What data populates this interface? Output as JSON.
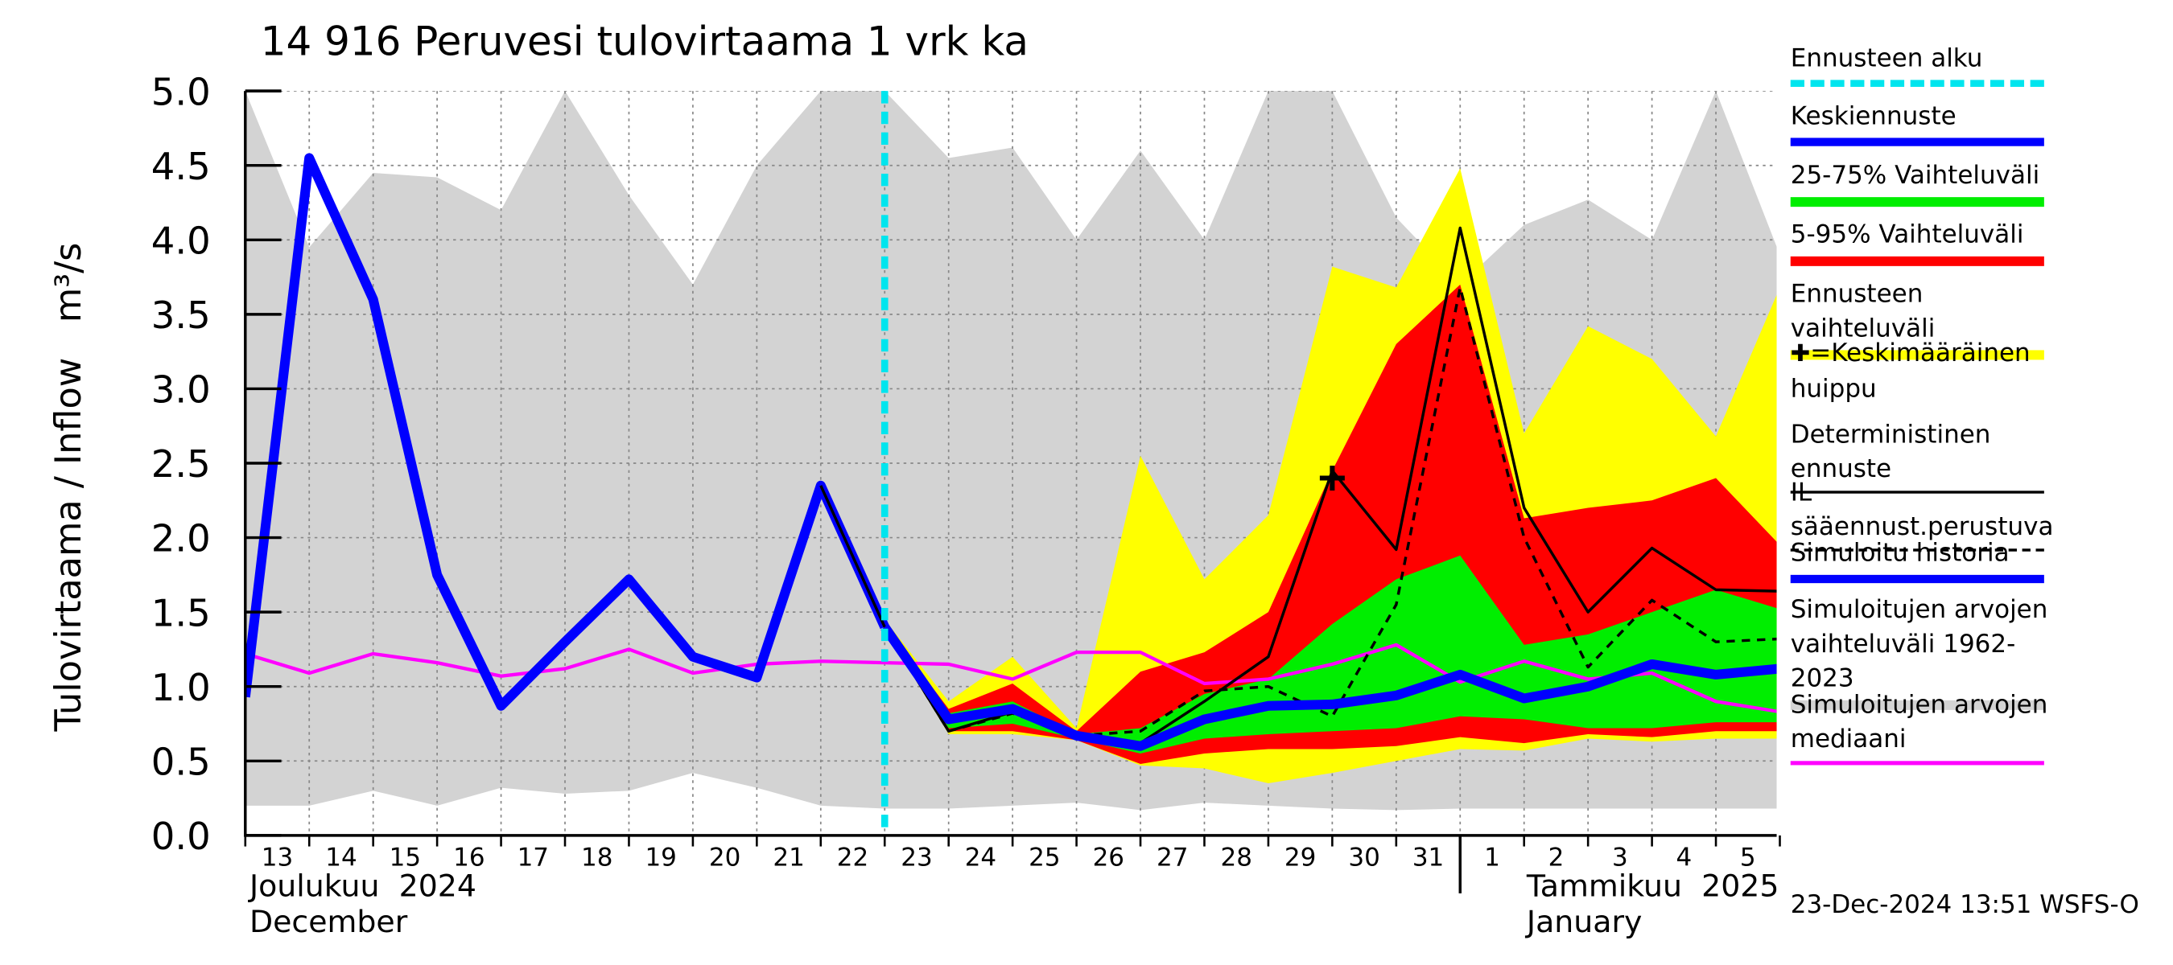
{
  "chart_data": {
    "type": "line",
    "title": "14 916 Peruvesi tulovirtaama 1 vrk ka",
    "y_label": "Tulovirtaama / Inflow",
    "y_unit": "m³/s",
    "categories": [
      "13",
      "14",
      "15",
      "16",
      "17",
      "18",
      "19",
      "20",
      "21",
      "22",
      "23",
      "24",
      "25",
      "26",
      "27",
      "28",
      "29",
      "30",
      "31",
      "1",
      "2",
      "3",
      "4",
      "5",
      null
    ],
    "months": [
      {
        "label": "Joulukuu  2024",
        "english": "December",
        "start": "13"
      },
      {
        "label": "Tammikuu  2025",
        "english": "January",
        "start": "1"
      }
    ],
    "forecast_start": {
      "label": "Ennusteen alku",
      "category": "23",
      "color": "#00e5ee"
    },
    "ylim": [
      0,
      5
    ],
    "yticks": [
      {
        "value": 0,
        "label": "0.0"
      },
      0.5,
      {
        "value": 1,
        "label": "1.0"
      },
      1.5,
      {
        "value": 2,
        "label": "2.0"
      },
      2.5,
      {
        "value": 3,
        "label": "3.0"
      },
      3.5,
      {
        "value": 4,
        "label": "4.0"
      },
      4.5,
      {
        "value": 5,
        "label": "5.0"
      }
    ],
    "grid": true,
    "series": [
      {
        "name": "Keskiennuste",
        "kind": "line",
        "style": "thick",
        "color": "#0000ff",
        "values": [
          null,
          null,
          null,
          null,
          null,
          null,
          null,
          null,
          null,
          null,
          1.4,
          0.78,
          0.85,
          0.67,
          0.6,
          0.78,
          0.87,
          0.88,
          0.94,
          1.08,
          0.92,
          1.0,
          1.15,
          1.08,
          1.12
        ]
      },
      {
        "name": "25-75% Vaihteluväli",
        "kind": "band",
        "color": "#00ee00",
        "upper": [
          null,
          null,
          null,
          null,
          null,
          null,
          null,
          null,
          null,
          null,
          1.41,
          0.82,
          0.9,
          0.68,
          0.72,
          0.95,
          1.05,
          1.42,
          1.72,
          1.88,
          1.28,
          1.35,
          1.5,
          1.65,
          1.52
        ],
        "lower": [
          null,
          null,
          null,
          null,
          null,
          null,
          null,
          null,
          null,
          null,
          1.4,
          0.72,
          0.75,
          0.65,
          0.55,
          0.65,
          0.68,
          0.7,
          0.72,
          0.8,
          0.78,
          0.72,
          0.72,
          0.76,
          0.76
        ]
      },
      {
        "name": "5-95% Vaihteluväli",
        "kind": "band",
        "color": "#ff0000",
        "upper": [
          null,
          null,
          null,
          null,
          null,
          null,
          null,
          null,
          null,
          null,
          1.42,
          0.85,
          1.02,
          0.7,
          1.1,
          1.23,
          1.5,
          2.45,
          3.3,
          3.7,
          2.13,
          2.2,
          2.25,
          2.4,
          1.95
        ],
        "lower": [
          null,
          null,
          null,
          null,
          null,
          null,
          null,
          null,
          null,
          null,
          1.4,
          0.7,
          0.7,
          0.64,
          0.48,
          0.55,
          0.58,
          0.58,
          0.6,
          0.66,
          0.62,
          0.68,
          0.66,
          0.7,
          0.7
        ]
      },
      {
        "name": "Ennusteen vaihteluväli",
        "kind": "band",
        "color": "#ffff00",
        "upper": [
          null,
          null,
          null,
          null,
          null,
          null,
          null,
          null,
          null,
          null,
          1.45,
          0.9,
          1.2,
          0.72,
          2.55,
          1.72,
          2.15,
          3.82,
          3.68,
          4.48,
          2.7,
          3.42,
          3.2,
          2.68,
          3.68
        ],
        "lower": [
          null,
          null,
          null,
          null,
          null,
          null,
          null,
          null,
          null,
          null,
          1.4,
          0.68,
          0.68,
          0.64,
          0.47,
          0.45,
          0.35,
          0.42,
          0.5,
          0.58,
          0.57,
          0.65,
          0.63,
          0.65,
          0.65
        ]
      },
      {
        "name": "=Keskimääräinen huippu",
        "kind": "marker",
        "color": "#000000",
        "values": [
          null,
          null,
          null,
          null,
          null,
          null,
          null,
          null,
          null,
          null,
          null,
          null,
          null,
          null,
          null,
          null,
          null,
          2.4,
          null,
          null,
          null,
          null,
          null,
          null,
          null
        ]
      },
      {
        "name": "Deterministinen ennuste",
        "kind": "line",
        "style": "thin",
        "color": "#000000",
        "values": [
          null,
          null,
          null,
          null,
          null,
          null,
          null,
          null,
          null,
          2.35,
          1.4,
          0.7,
          0.83,
          0.67,
          0.62,
          0.9,
          1.2,
          2.45,
          1.92,
          4.08,
          2.2,
          1.5,
          1.93,
          1.65,
          1.64
        ]
      },
      {
        "name": "IL sääennust.perustuva",
        "kind": "line",
        "style": "dashed",
        "color": "#000000",
        "values": [
          null,
          null,
          null,
          null,
          null,
          null,
          null,
          null,
          null,
          null,
          1.4,
          0.7,
          0.82,
          0.67,
          0.7,
          0.97,
          1.0,
          0.8,
          1.55,
          3.68,
          2.0,
          1.13,
          1.58,
          1.3,
          1.32
        ]
      },
      {
        "name": "Simuloitu historia",
        "kind": "line",
        "style": "thick",
        "color": "#0000ff",
        "values": [
          0.93,
          4.55,
          3.6,
          1.75,
          0.87,
          1.3,
          1.72,
          1.2,
          1.06,
          2.35,
          1.4,
          null,
          null,
          null,
          null,
          null,
          null,
          null,
          null,
          null,
          null,
          null,
          null,
          null,
          null
        ]
      },
      {
        "name": "Simuloitujen arvojen vaihteluväli 1962-2023",
        "kind": "band",
        "color": "#d3d3d3",
        "upper": [
          5.0,
          3.95,
          4.45,
          4.42,
          4.2,
          5.0,
          4.3,
          3.7,
          4.5,
          5.0,
          5.0,
          4.55,
          4.62,
          4.0,
          4.6,
          4.0,
          5.0,
          5.0,
          4.15,
          3.7,
          4.1,
          4.27,
          4.0,
          5.0,
          3.9
        ],
        "lower": [
          0.2,
          0.2,
          0.3,
          0.2,
          0.32,
          0.28,
          0.3,
          0.42,
          0.32,
          0.2,
          0.18,
          0.18,
          0.2,
          0.22,
          0.17,
          0.22,
          0.2,
          0.18,
          0.17,
          0.18,
          0.18,
          0.18,
          0.18,
          0.18,
          0.18
        ]
      },
      {
        "name": "Simuloitujen arvojen mediaani",
        "kind": "line",
        "style": "medium",
        "color": "#ff00ff",
        "values": [
          1.22,
          1.09,
          1.22,
          1.16,
          1.07,
          1.12,
          1.25,
          1.09,
          1.15,
          1.17,
          1.16,
          1.15,
          1.05,
          1.23,
          1.23,
          1.02,
          1.05,
          1.15,
          1.28,
          1.03,
          1.17,
          1.05,
          1.09,
          0.9,
          0.83
        ]
      }
    ],
    "timestamp": "23-Dec-2024 13:51 WSFS-O"
  }
}
